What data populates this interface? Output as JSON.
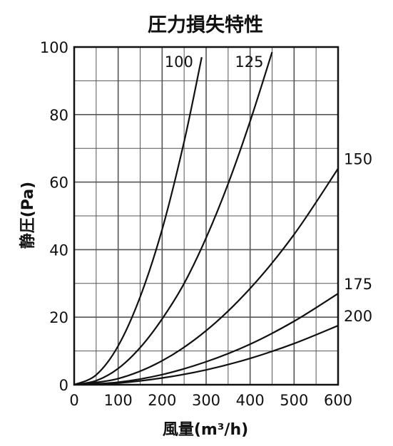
{
  "chart_data": {
    "type": "line",
    "title": "圧力損失特性",
    "xlabel": "風量(m³/h)",
    "ylabel": "静圧(Pa)",
    "xlim": [
      0,
      600
    ],
    "ylim": [
      0,
      100
    ],
    "x_ticks": [
      0,
      100,
      200,
      300,
      400,
      500,
      600
    ],
    "y_ticks": [
      0,
      20,
      40,
      60,
      80,
      100
    ],
    "x_tick_labels": [
      "0",
      "100",
      "200",
      "300",
      "400",
      "500",
      "600"
    ],
    "y_tick_labels": [
      "0",
      "20",
      "40",
      "60",
      "80",
      "100"
    ],
    "grid": true,
    "legend": "none",
    "colors": {
      "line": "#111111",
      "grid": "#555555",
      "background": "#ffffff"
    },
    "series": [
      {
        "name": "100",
        "x": [
          0,
          50,
          100,
          150,
          200,
          250,
          290
        ],
        "y": [
          0,
          2.9,
          11.5,
          26,
          46,
          72,
          97
        ]
      },
      {
        "name": "125",
        "x": [
          0,
          50,
          100,
          150,
          200,
          250,
          300,
          350,
          400,
          450
        ],
        "y": [
          0,
          1.2,
          4.8,
          11,
          19.5,
          30,
          43.5,
          59.5,
          78,
          98.5
        ]
      },
      {
        "name": "150",
        "x": [
          0,
          100,
          200,
          300,
          400,
          500,
          600
        ],
        "y": [
          0,
          1.8,
          7.1,
          16,
          28.5,
          44.5,
          64
        ]
      },
      {
        "name": "175",
        "x": [
          0,
          100,
          200,
          300,
          400,
          500,
          600
        ],
        "y": [
          0,
          0.75,
          3,
          6.8,
          12,
          18.8,
          27
        ]
      },
      {
        "name": "200",
        "x": [
          0,
          100,
          200,
          300,
          400,
          500,
          600
        ],
        "y": [
          0,
          0.5,
          2,
          4.4,
          7.8,
          12.2,
          17.5
        ]
      }
    ]
  }
}
